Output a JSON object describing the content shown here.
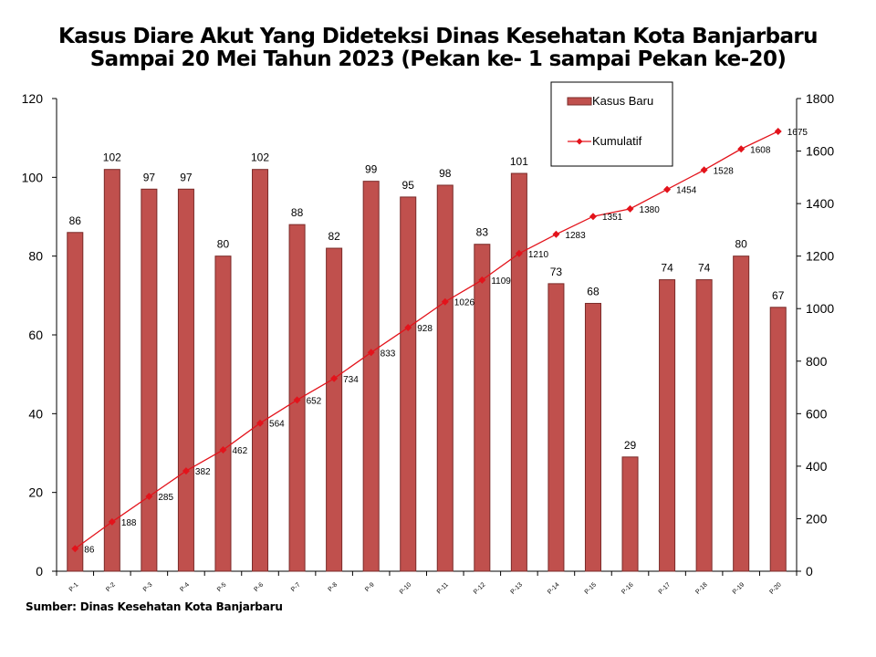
{
  "title_line1": "Kasus Diare Akut Yang Dideteksi Dinas Kesehatan Kota Banjarbaru",
  "title_line2": "Sampai 20 Mei Tahun 2023 (Pekan ke- 1 sampai Pekan ke-20)",
  "source": "Sumber: Dinas Kesehatan Kota Banjarbaru",
  "chart_data": {
    "type": "bar",
    "categories": [
      "P-1",
      "P-2",
      "P-3",
      "P-4",
      "P-5",
      "P-6",
      "P-7",
      "P-8",
      "P-9",
      "P-10",
      "P-11",
      "P-12",
      "P-13",
      "P-14",
      "P-15",
      "P-16",
      "P-17",
      "P-18",
      "P-19",
      "P-20"
    ],
    "series": [
      {
        "name": "Kasus Baru",
        "type": "bar",
        "axis": "left",
        "color": "#c0504d",
        "values": [
          86,
          102,
          97,
          97,
          80,
          102,
          88,
          82,
          99,
          95,
          98,
          83,
          101,
          73,
          68,
          29,
          74,
          74,
          80,
          67
        ]
      },
      {
        "name": "Kumulatif",
        "type": "line",
        "axis": "right",
        "color": "#e3131b",
        "values": [
          86,
          188,
          285,
          382,
          462,
          564,
          652,
          734,
          833,
          928,
          1026,
          1109,
          1210,
          1283,
          1351,
          1380,
          1454,
          1528,
          1608,
          1675
        ]
      }
    ],
    "ylim_left": [
      0,
      120
    ],
    "yticks_left": [
      0,
      20,
      40,
      60,
      80,
      100,
      120
    ],
    "ylim_right": [
      0,
      1800
    ],
    "yticks_right": [
      0,
      200,
      400,
      600,
      800,
      1000,
      1200,
      1400,
      1600,
      1800
    ],
    "grid": false,
    "legend_position": "top-right",
    "data_labels": true
  }
}
